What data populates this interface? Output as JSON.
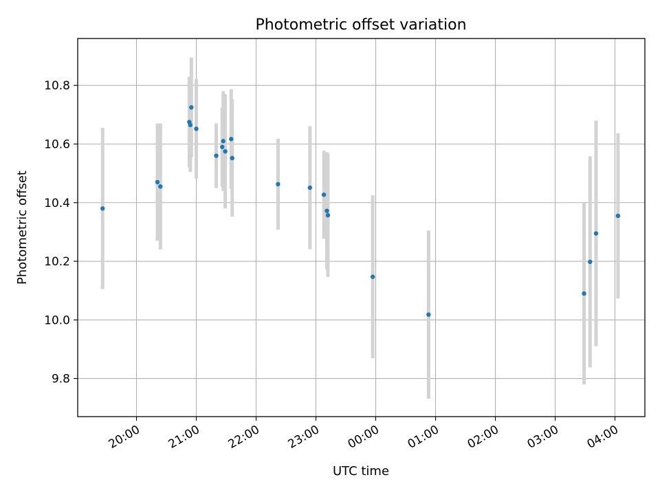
{
  "chart_data": {
    "type": "scatter",
    "title": "Photometric offset variation",
    "xlabel": "UTC time",
    "ylabel": "Photometric offset",
    "x_axis_type": "time",
    "xlim": [
      "2024-01-01T19:01:00",
      "2024-01-02T04:30:00"
    ],
    "ylim": [
      9.67,
      10.96
    ],
    "x_ticks": [
      {
        "value": "2024-01-01T20:00:00",
        "label": "20:00"
      },
      {
        "value": "2024-01-01T21:00:00",
        "label": "21:00"
      },
      {
        "value": "2024-01-01T22:00:00",
        "label": "22:00"
      },
      {
        "value": "2024-01-01T23:00:00",
        "label": "23:00"
      },
      {
        "value": "2024-01-02T00:00:00",
        "label": "00:00"
      },
      {
        "value": "2024-01-02T01:00:00",
        "label": "01:00"
      },
      {
        "value": "2024-01-02T02:00:00",
        "label": "02:00"
      },
      {
        "value": "2024-01-02T03:00:00",
        "label": "03:00"
      },
      {
        "value": "2024-01-02T04:00:00",
        "label": "04:00"
      }
    ],
    "y_ticks": [
      9.8,
      10.0,
      10.2,
      10.4,
      10.6,
      10.8
    ],
    "y_tick_labels": [
      "9.8",
      "10.0",
      "10.2",
      "10.4",
      "10.6",
      "10.8"
    ],
    "grid": true,
    "colors": {
      "marker": "#1f77b4",
      "errorbar": "#d3d3d3",
      "grid": "#b0b0b0"
    },
    "points": [
      {
        "x": "2024-01-01T19:26:00",
        "y": 10.38,
        "yerr": 0.275
      },
      {
        "x": "2024-01-01T20:21:00",
        "y": 10.47,
        "yerr": 0.2
      },
      {
        "x": "2024-01-01T20:24:00",
        "y": 10.455,
        "yerr": 0.215
      },
      {
        "x": "2024-01-01T20:53:00",
        "y": 10.675,
        "yerr": 0.155
      },
      {
        "x": "2024-01-01T20:54:00",
        "y": 10.665,
        "yerr": 0.16
      },
      {
        "x": "2024-01-01T20:55:00",
        "y": 10.725,
        "yerr": 0.17
      },
      {
        "x": "2024-01-01T21:00:00",
        "y": 10.652,
        "yerr": 0.17
      },
      {
        "x": "2024-01-01T21:20:00",
        "y": 10.56,
        "yerr": 0.11
      },
      {
        "x": "2024-01-01T21:26:00",
        "y": 10.59,
        "yerr": 0.135
      },
      {
        "x": "2024-01-01T21:27:00",
        "y": 10.61,
        "yerr": 0.17
      },
      {
        "x": "2024-01-01T21:29:00",
        "y": 10.575,
        "yerr": 0.195
      },
      {
        "x": "2024-01-01T21:35:00",
        "y": 10.617,
        "yerr": 0.17
      },
      {
        "x": "2024-01-01T21:36:00",
        "y": 10.552,
        "yerr": 0.2
      },
      {
        "x": "2024-01-01T22:22:00",
        "y": 10.463,
        "yerr": 0.155
      },
      {
        "x": "2024-01-01T22:54:00",
        "y": 10.451,
        "yerr": 0.21
      },
      {
        "x": "2024-01-01T23:08:00",
        "y": 10.427,
        "yerr": 0.15
      },
      {
        "x": "2024-01-01T23:11:00",
        "y": 10.372,
        "yerr": 0.2
      },
      {
        "x": "2024-01-01T23:12:00",
        "y": 10.357,
        "yerr": 0.21
      },
      {
        "x": "2024-01-01T23:57:00",
        "y": 10.147,
        "yerr": 0.278
      },
      {
        "x": "2024-01-02T00:53:00",
        "y": 10.018,
        "yerr": 0.287
      },
      {
        "x": "2024-01-02T03:29:00",
        "y": 10.09,
        "yerr": 0.31
      },
      {
        "x": "2024-01-02T03:35:00",
        "y": 10.198,
        "yerr": 0.36
      },
      {
        "x": "2024-01-02T03:41:00",
        "y": 10.295,
        "yerr": 0.385
      },
      {
        "x": "2024-01-02T04:03:00",
        "y": 10.355,
        "yerr": 0.282
      }
    ]
  }
}
